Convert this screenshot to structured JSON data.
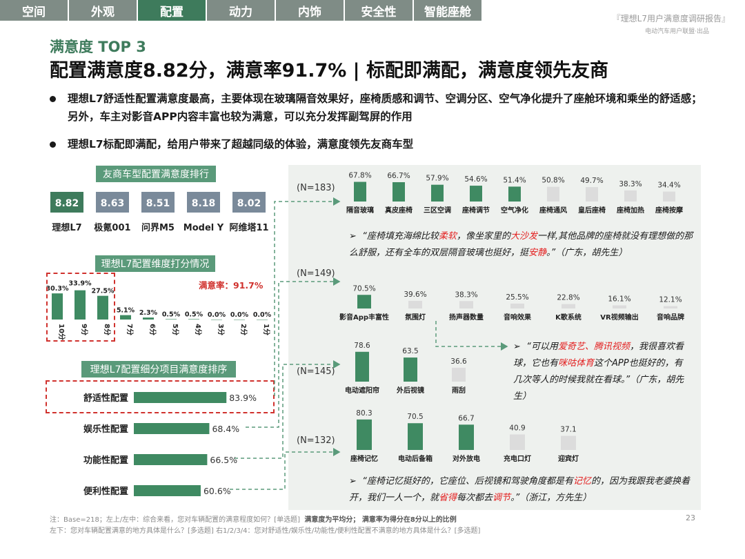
{
  "nav": {
    "tabs": [
      {
        "label": "空间",
        "active": false
      },
      {
        "label": "外观",
        "active": false
      },
      {
        "label": "配置",
        "active": true
      },
      {
        "label": "动力",
        "active": false
      },
      {
        "label": "内饰",
        "active": false
      },
      {
        "label": "安全性",
        "active": false
      },
      {
        "label": "智能座舱",
        "active": false
      }
    ]
  },
  "header": {
    "report_title": "『理想L7用户满意度调研报告』",
    "report_subtitle": "电动汽车用户联盟·出品",
    "kicker": "满意度 TOP 3",
    "headline": "配置满意度8.82分，满意率91.7% | 标配即满配，满意度领先友商"
  },
  "bullets": [
    "理想L7舒适性配置满意度最高，主要体现在玻璃隔音效果好，座椅质感和调节、空调分区、空气净化提升了座舱环境和乘坐的舒适感；另外，车主对影音APP内容丰富也较为满意，可以充分发挥副驾屏的作用",
    "理想L7标配即满配，给用户带来了超越同级的体验，满意度领先友商车型"
  ],
  "colors": {
    "primary": "#3e7b5c",
    "bar_green": "#3f8a62",
    "bar_gray": "#dcdcdc",
    "nav_gray": "#7f8c86",
    "accent_red": "#d0312d"
  },
  "section_titles": {
    "rivals": "友商车型配置满意度排行",
    "dimensions": "理想L7配置维度打分情况",
    "items": "理想L7配置细分项目满意度排序"
  },
  "satisfaction_rate_label": "满意率：91.7%",
  "quotes": {
    "q1": [
      "“座椅填充海绵比较",
      "柔软",
      "，像坐家里的",
      "大沙发",
      "一样,其他品牌的座椅就没有理想做的那么舒服，还有全车的双层隔音玻璃也挺好，挺",
      "安静",
      "。”（广东，胡先生）"
    ],
    "q2": [
      "“可以用",
      "爱奇艺、腾讯视频",
      "，我很喜欢看球，它也有",
      "咪咕体育",
      "这个APP也挺好的，有几次等人的时候我就在看球。”（广东，胡先生）"
    ],
    "q3": [
      "“座椅记忆挺好的，它座位、后视镜和驾驶角度都是有",
      "记忆",
      "的，因为我跟我老婆换着开，我们一人一个，就",
      "省得",
      "每次都去",
      "调节",
      "。”（浙江，方先生）"
    ]
  },
  "footnotes": {
    "line1_prefix": "注：Base=218；左上/左中：综合来看，您对车辆配置的满意程度如何？[单选题]",
    "line1_bold": "满意度为平均分；  满意率为得分在8分以上的比例",
    "line2": "左下：您对车辆配置满意的地方具体是什么？[多选题]        右1/2/3/4：您对舒适性/娱乐性/功能性/便利性配置不满意的地方具体是什么？[多选题]",
    "page": "23"
  },
  "chart_data": [
    {
      "type": "bar",
      "id": "rival_scores",
      "categories": [
        "理想L7",
        "极氪001",
        "问界M5",
        "Model Y",
        "阿维塔11"
      ],
      "values": [
        8.82,
        8.63,
        8.51,
        8.18,
        8.02
      ]
    },
    {
      "type": "bar",
      "id": "score_distribution",
      "categories": [
        "10分",
        "9分",
        "8分",
        "7分",
        "6分",
        "5分",
        "4分",
        "3分",
        "2分",
        "1分"
      ],
      "values": [
        30.3,
        33.9,
        27.5,
        5.1,
        2.3,
        0.5,
        0.5,
        0.0,
        0.0,
        0.0
      ],
      "value_labels": [
        "30.3%",
        "33.9%",
        "27.5%",
        "5.1%",
        "2.3%",
        "0.5%",
        "0.5%",
        "0.0%",
        "0.0%",
        "0.0%"
      ]
    },
    {
      "type": "bar",
      "id": "item_satisfaction",
      "orientation": "horizontal",
      "categories": [
        "舒适性配置",
        "娱乐性配置",
        "功能性配置",
        "便利性配置"
      ],
      "values": [
        83.9,
        68.4,
        66.5,
        60.6
      ],
      "value_labels": [
        "83.9%",
        "68.4%",
        "66.5%",
        "60.6%"
      ]
    },
    {
      "type": "bar",
      "id": "comfort_items",
      "n_label": "(N=183)",
      "categories": [
        "隔音玻璃",
        "真皮座椅",
        "三区空调",
        "座椅调节",
        "空气净化",
        "座椅通风",
        "皇后座椅",
        "座椅加热",
        "座椅按摩"
      ],
      "values": [
        67.8,
        66.7,
        57.9,
        54.6,
        51.4,
        50.8,
        49.7,
        38.3,
        34.4
      ],
      "value_labels": [
        "67.8%",
        "66.7%",
        "57.9%",
        "54.6%",
        "51.4%",
        "50.8%",
        "49.7%",
        "38.3%",
        "34.4%"
      ],
      "highlighted_count": 5
    },
    {
      "type": "bar",
      "id": "entertainment_items",
      "n_label": "(N=149)",
      "categories": [
        "影音App丰富性",
        "氛围灯",
        "扬声器数量",
        "音响效果",
        "K歌系统",
        "VR视频输出",
        "音响品牌"
      ],
      "values": [
        70.5,
        39.6,
        38.3,
        25.5,
        22.8,
        16.1,
        12.1
      ],
      "value_labels": [
        "70.5%",
        "39.6%",
        "38.3%",
        "25.5%",
        "22.8%",
        "16.1%",
        "12.1%"
      ],
      "highlighted_count": 1
    },
    {
      "type": "bar",
      "id": "function_items",
      "n_label": "(N=145)",
      "categories": [
        "电动遮阳帘",
        "外后视镜",
        "雨刮"
      ],
      "values": [
        78.6,
        63.5,
        36.6
      ],
      "value_labels": [
        "78.6",
        "63.5",
        "36.6"
      ],
      "highlighted_count": 2
    },
    {
      "type": "bar",
      "id": "convenience_items",
      "n_label": "(N=132)",
      "categories": [
        "座椅记忆",
        "电动后备箱",
        "对外放电",
        "充电口灯",
        "迎宾灯"
      ],
      "values": [
        80.3,
        70.5,
        66.7,
        40.9,
        37.1
      ],
      "value_labels": [
        "80.3",
        "70.5",
        "66.7",
        "40.9",
        "37.1"
      ],
      "highlighted_count": 3
    }
  ]
}
